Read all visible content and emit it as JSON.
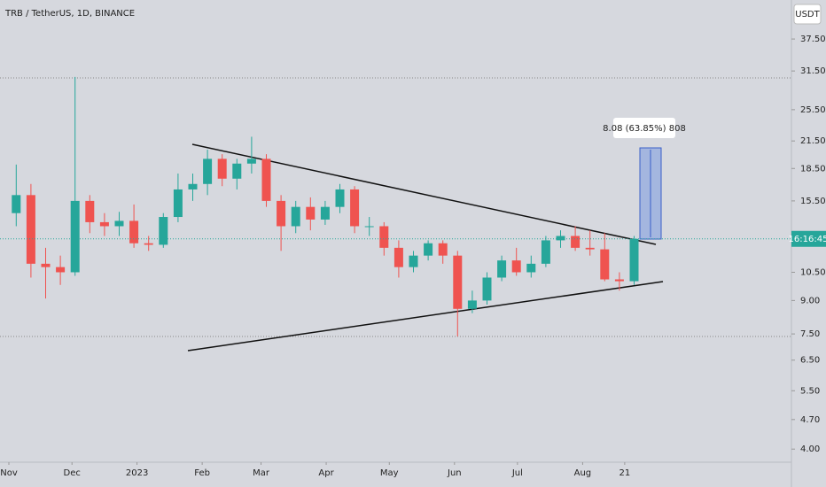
{
  "chart_data": {
    "type": "candlestick",
    "title": "TRB / TetherUS, 1D, BINANCE",
    "currency": "USDT",
    "price_label": "16:16:45",
    "measure_label": "8.08 (63.85%) 808",
    "up_color": "#26a69a",
    "down_color": "#ef5350",
    "log_scale": true,
    "ylim": [
      3.76,
      46.4
    ],
    "yticks": [
      {
        "value": 37.5,
        "label": "37.50"
      },
      {
        "value": 31.5,
        "label": "31.50"
      },
      {
        "value": 25.5,
        "label": "25.50"
      },
      {
        "value": 21.5,
        "label": "21.50"
      },
      {
        "value": 18.5,
        "label": "18.50"
      },
      {
        "value": 15.5,
        "label": "15.50"
      },
      {
        "value": 10.5,
        "label": "10.50"
      },
      {
        "value": 9,
        "label": "9.00"
      },
      {
        "value": 7.5,
        "label": "7.50"
      },
      {
        "value": 6.5,
        "label": "6.50"
      },
      {
        "value": 5.5,
        "label": "5.50"
      },
      {
        "value": 4.7,
        "label": "4.70"
      },
      {
        "value": 4,
        "label": "4.00"
      }
    ],
    "xticks": [
      {
        "value": 0,
        "label": "Nov"
      },
      {
        "value": 4.29,
        "label": "Dec"
      },
      {
        "value": 8.71,
        "label": "2023"
      },
      {
        "value": 13.14,
        "label": "Feb"
      },
      {
        "value": 17.14,
        "label": "Mar"
      },
      {
        "value": 21.57,
        "label": "Apr"
      },
      {
        "value": 25.86,
        "label": "May"
      },
      {
        "value": 30.29,
        "label": "Jun"
      },
      {
        "value": 34.57,
        "label": "Jul"
      },
      {
        "value": 39,
        "label": "Aug"
      },
      {
        "value": 41.86,
        "label": "21"
      }
    ],
    "candles": [
      [
        14.5,
        18.9,
        13.5,
        16.0
      ],
      [
        16.0,
        17.0,
        10.2,
        11.0
      ],
      [
        11.0,
        12.0,
        9.1,
        10.8
      ],
      [
        10.8,
        11.5,
        9.8,
        10.5
      ],
      [
        10.5,
        30.5,
        10.3,
        15.5
      ],
      [
        15.5,
        16.0,
        13.0,
        13.8
      ],
      [
        13.8,
        14.5,
        12.8,
        13.5
      ],
      [
        13.5,
        14.6,
        12.8,
        13.9
      ],
      [
        13.9,
        15.2,
        12.0,
        12.3
      ],
      [
        12.3,
        12.8,
        11.8,
        12.2
      ],
      [
        12.2,
        14.5,
        12.0,
        14.2
      ],
      [
        14.2,
        18.0,
        13.8,
        16.5
      ],
      [
        16.5,
        18.0,
        15.5,
        17.0
      ],
      [
        17.0,
        20.5,
        16.0,
        19.5
      ],
      [
        19.5,
        20.0,
        16.8,
        17.5
      ],
      [
        17.5,
        19.5,
        16.5,
        19.0
      ],
      [
        19.0,
        22.0,
        18.0,
        19.5
      ],
      [
        19.5,
        20.0,
        15.0,
        15.5
      ],
      [
        15.5,
        16.0,
        11.8,
        13.5
      ],
      [
        13.5,
        15.5,
        13.0,
        15.0
      ],
      [
        15.0,
        15.8,
        13.2,
        14.0
      ],
      [
        14.0,
        15.5,
        13.6,
        15.0
      ],
      [
        15.0,
        17.0,
        14.5,
        16.5
      ],
      [
        16.5,
        16.8,
        13.0,
        13.5
      ],
      [
        13.5,
        14.2,
        12.8,
        13.5
      ],
      [
        13.5,
        13.8,
        11.5,
        12.0
      ],
      [
        12.0,
        12.5,
        10.2,
        10.8
      ],
      [
        10.8,
        11.8,
        10.5,
        11.5
      ],
      [
        11.5,
        12.5,
        11.2,
        12.3
      ],
      [
        12.3,
        12.5,
        11.0,
        11.5
      ],
      [
        11.5,
        11.8,
        7.4,
        8.6
      ],
      [
        8.6,
        9.5,
        8.4,
        9.0
      ],
      [
        9.0,
        10.5,
        8.8,
        10.2
      ],
      [
        10.2,
        11.5,
        10.0,
        11.2
      ],
      [
        11.2,
        12.0,
        10.3,
        10.5
      ],
      [
        10.5,
        11.5,
        10.2,
        11.0
      ],
      [
        11.0,
        12.8,
        10.8,
        12.5
      ],
      [
        12.5,
        13.2,
        12.0,
        12.8
      ],
      [
        12.8,
        13.5,
        11.8,
        12.0
      ],
      [
        12.0,
        13.2,
        11.5,
        11.9
      ],
      [
        11.9,
        13.0,
        10.0,
        10.1
      ],
      [
        10.1,
        10.5,
        9.5,
        10.0
      ],
      [
        10.0,
        12.8,
        9.8,
        12.6
      ]
    ]
  }
}
